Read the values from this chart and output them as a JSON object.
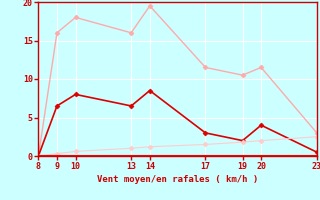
{
  "x_ticks": [
    8,
    9,
    10,
    13,
    14,
    17,
    19,
    20,
    23
  ],
  "line1_x": [
    8,
    9,
    10,
    13,
    14,
    17,
    19,
    20,
    23
  ],
  "line1_y": [
    0,
    16,
    18,
    16,
    19.5,
    11.5,
    10.5,
    11.5,
    3
  ],
  "line2_x": [
    8,
    9,
    10,
    13,
    14,
    17,
    19,
    20,
    23
  ],
  "line2_y": [
    0,
    6.5,
    8,
    6.5,
    8.5,
    3,
    2,
    4,
    0.5
  ],
  "line3_x": [
    8,
    9,
    10,
    13,
    14,
    17,
    19,
    20,
    23
  ],
  "line3_y": [
    0,
    0.3,
    0.6,
    1.0,
    1.2,
    1.5,
    1.8,
    2.0,
    2.5
  ],
  "line4_x": [
    8,
    23
  ],
  "line4_y": [
    0,
    0
  ],
  "line1_color": "#ffaaaa",
  "line2_color": "#dd0000",
  "line3_color": "#ffcccc",
  "line4_color": "#ff0000",
  "bg_color": "#ccffff",
  "grid_color": "#ffffff",
  "xlabel": "Vent moyen/en rafales ( km/h )",
  "ylim": [
    0,
    20
  ],
  "xlim": [
    8,
    23
  ],
  "yticks": [
    0,
    5,
    10,
    15,
    20
  ],
  "text_color": "#cc0000",
  "marker": "D",
  "markersize": 2.5,
  "linewidth1": 1.0,
  "linewidth2": 1.2,
  "linewidth3": 0.8,
  "linewidth4": 1.5
}
